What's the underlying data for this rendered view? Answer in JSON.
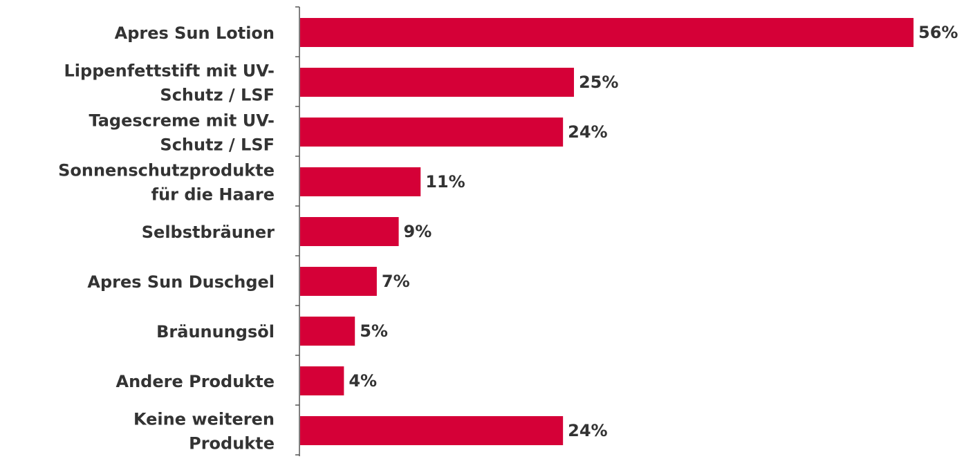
{
  "chart_data": {
    "type": "bar",
    "orientation": "horizontal",
    "categories": [
      "Apres Sun Lotion",
      "Lippenfettstift mit UV-Schutz / LSF",
      "Tagescreme mit UV-Schutz / LSF",
      "Sonnenschutzprodukte für die Haare",
      "Selbstbräuner",
      "Apres Sun Duschgel",
      "Bräunungsöl",
      "Andere Produkte",
      "Keine weiteren Produkte"
    ],
    "category_lines": [
      [
        "Apres Sun Lotion"
      ],
      [
        "Lippenfettstift mit UV-",
        "Schutz / LSF"
      ],
      [
        "Tagescreme mit UV-",
        "Schutz / LSF"
      ],
      [
        "Sonnenschutzprodukte",
        "für die Haare"
      ],
      [
        "Selbstbräuner"
      ],
      [
        "Apres Sun Duschgel"
      ],
      [
        "Bräunungsöl"
      ],
      [
        "Andere Produkte"
      ],
      [
        "Keine weiteren",
        "Produkte"
      ]
    ],
    "values": [
      56,
      25,
      24,
      11,
      9,
      7,
      5,
      4,
      24
    ],
    "value_labels": [
      "56%",
      "25%",
      "24%",
      "11%",
      "9%",
      "7%",
      "5%",
      "4%",
      "24%"
    ],
    "unit": "%",
    "xlim": [
      0,
      56
    ],
    "grid": false,
    "legend": "none",
    "colors": {
      "bar": "#d50037",
      "label": "#333333",
      "axis": "#555555"
    }
  }
}
